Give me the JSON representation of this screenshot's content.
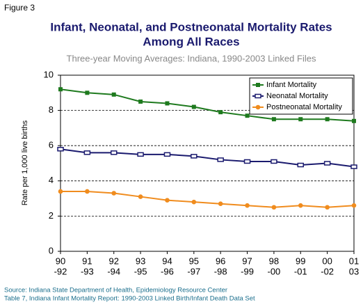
{
  "figure_label": "Figure 3",
  "notes": [
    "Source: Indiana State Department of Health, Epidemiology Resource Center",
    "Table 7, Indiana Infant Mortality Report: 1990-2003 Linked Birth/Infant Death Data Set"
  ],
  "chart_data": {
    "type": "line",
    "title": [
      "Infant, Neonatal, and Postneonatal Mortality Rates",
      "Among All Races"
    ],
    "subtitle": "Three-year Moving Averages: Indiana, 1990-2003 Linked Files",
    "y_label": "Rate per 1,000 live births",
    "categories": [
      [
        "90",
        "-92"
      ],
      [
        "91",
        "-93"
      ],
      [
        "92",
        "-94"
      ],
      [
        "93",
        "-95"
      ],
      [
        "94",
        "-96"
      ],
      [
        "95",
        "-97"
      ],
      [
        "96",
        "-98"
      ],
      [
        "97",
        "-99"
      ],
      [
        "98",
        "-00"
      ],
      [
        "99",
        "-01"
      ],
      [
        "00",
        "-02"
      ],
      [
        "01",
        "03"
      ]
    ],
    "series": [
      {
        "name": "Infant Mortality",
        "color": "#1e7a1e",
        "marker": "square",
        "values": [
          9.2,
          9.0,
          8.9,
          8.5,
          8.4,
          8.2,
          7.9,
          7.7,
          7.5,
          7.5,
          7.5,
          7.4
        ]
      },
      {
        "name": "Neonatal Mortality",
        "color": "#1a1a6e",
        "marker": "hollow-rect",
        "values": [
          5.8,
          5.6,
          5.6,
          5.5,
          5.5,
          5.4,
          5.2,
          5.1,
          5.1,
          4.9,
          5.0,
          4.8
        ]
      },
      {
        "name": "Postneonatal Mortality",
        "color": "#f08c1e",
        "marker": "circle",
        "values": [
          3.4,
          3.4,
          3.3,
          3.1,
          2.9,
          2.8,
          2.7,
          2.6,
          2.5,
          2.6,
          2.5,
          2.6
        ]
      }
    ],
    "ylim": [
      0,
      10
    ],
    "yticks": [
      0,
      2,
      4,
      6,
      8,
      10
    ],
    "grid": true,
    "legend": "top-right"
  }
}
